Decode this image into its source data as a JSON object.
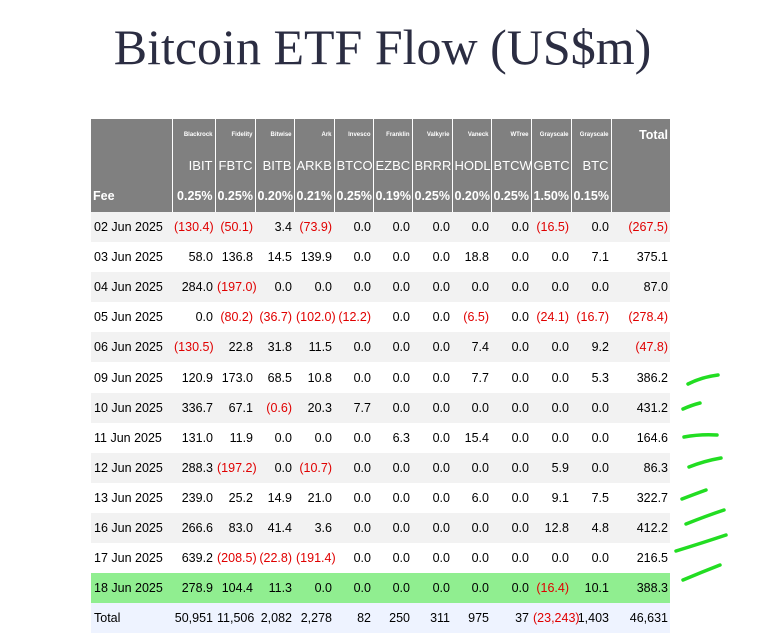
{
  "title": "Bitcoin ETF Flow (US$m)",
  "header": {
    "issuers": [
      "Blackrock",
      "Fidelity",
      "Bitwise",
      "Ark",
      "Invesco",
      "Franklin",
      "Valkyrie",
      "Vaneck",
      "WTree",
      "Grayscale",
      "Grayscale"
    ],
    "total_label": "Total",
    "tickers": [
      "IBIT",
      "FBTC",
      "BITB",
      "ARKB",
      "BTCO",
      "EZBC",
      "BRRR",
      "HODL",
      "BTCW",
      "GBTC",
      "BTC"
    ],
    "fee_label": "Fee",
    "fees": [
      "0.25%",
      "0.25%",
      "0.20%",
      "0.21%",
      "0.25%",
      "0.19%",
      "0.25%",
      "0.20%",
      "0.25%",
      "1.50%",
      "0.15%"
    ]
  },
  "rows": [
    {
      "date": "02 Jun 2025",
      "values": [
        "(130.4)",
        "(50.1)",
        "3.4",
        "(73.9)",
        "0.0",
        "0.0",
        "0.0",
        "0.0",
        "0.0",
        "(16.5)",
        "0.0",
        "(267.5)"
      ]
    },
    {
      "date": "03 Jun 2025",
      "values": [
        "58.0",
        "136.8",
        "14.5",
        "139.9",
        "0.0",
        "0.0",
        "0.0",
        "18.8",
        "0.0",
        "0.0",
        "7.1",
        "375.1"
      ]
    },
    {
      "date": "04 Jun 2025",
      "values": [
        "284.0",
        "(197.0)",
        "0.0",
        "0.0",
        "0.0",
        "0.0",
        "0.0",
        "0.0",
        "0.0",
        "0.0",
        "0.0",
        "87.0"
      ]
    },
    {
      "date": "05 Jun 2025",
      "values": [
        "0.0",
        "(80.2)",
        "(36.7)",
        "(102.0)",
        "(12.2)",
        "0.0",
        "0.0",
        "(6.5)",
        "0.0",
        "(24.1)",
        "(16.7)",
        "(278.4)"
      ]
    },
    {
      "date": "06 Jun 2025",
      "values": [
        "(130.5)",
        "22.8",
        "31.8",
        "11.5",
        "0.0",
        "0.0",
        "0.0",
        "7.4",
        "0.0",
        "0.0",
        "9.2",
        "(47.8)"
      ]
    },
    {
      "date": "09 Jun 2025",
      "values": [
        "120.9",
        "173.0",
        "68.5",
        "10.8",
        "0.0",
        "0.0",
        "0.0",
        "7.7",
        "0.0",
        "0.0",
        "5.3",
        "386.2"
      ]
    },
    {
      "date": "10 Jun 2025",
      "values": [
        "336.7",
        "67.1",
        "(0.6)",
        "20.3",
        "7.7",
        "0.0",
        "0.0",
        "0.0",
        "0.0",
        "0.0",
        "0.0",
        "431.2"
      ]
    },
    {
      "date": "11 Jun 2025",
      "values": [
        "131.0",
        "11.9",
        "0.0",
        "0.0",
        "0.0",
        "6.3",
        "0.0",
        "15.4",
        "0.0",
        "0.0",
        "0.0",
        "164.6"
      ]
    },
    {
      "date": "12 Jun 2025",
      "values": [
        "288.3",
        "(197.2)",
        "0.0",
        "(10.7)",
        "0.0",
        "0.0",
        "0.0",
        "0.0",
        "0.0",
        "5.9",
        "0.0",
        "86.3"
      ]
    },
    {
      "date": "13 Jun 2025",
      "values": [
        "239.0",
        "25.2",
        "14.9",
        "21.0",
        "0.0",
        "0.0",
        "0.0",
        "6.0",
        "0.0",
        "9.1",
        "7.5",
        "322.7"
      ]
    },
    {
      "date": "16 Jun 2025",
      "values": [
        "266.6",
        "83.0",
        "41.4",
        "3.6",
        "0.0",
        "0.0",
        "0.0",
        "0.0",
        "0.0",
        "12.8",
        "4.8",
        "412.2"
      ]
    },
    {
      "date": "17 Jun 2025",
      "values": [
        "639.2",
        "(208.5)",
        "(22.8)",
        "(191.4)",
        "0.0",
        "0.0",
        "0.0",
        "0.0",
        "0.0",
        "0.0",
        "0.0",
        "216.5"
      ]
    },
    {
      "date": "18 Jun 2025",
      "values": [
        "278.9",
        "104.4",
        "11.3",
        "0.0",
        "0.0",
        "0.0",
        "0.0",
        "0.0",
        "0.0",
        "(16.4)",
        "10.1",
        "388.3"
      ],
      "highlight": true
    }
  ],
  "total_row": {
    "label": "Total",
    "values": [
      "50,951",
      "11,506",
      "2,082",
      "2,278",
      "82",
      "250",
      "311",
      "975",
      "37",
      "(23,243)",
      "1,403",
      "46,631"
    ]
  },
  "colors": {
    "header_bg": "#808080",
    "highlight": "#90ee90",
    "negative": "#e00000",
    "annotation": "#22dd22"
  }
}
